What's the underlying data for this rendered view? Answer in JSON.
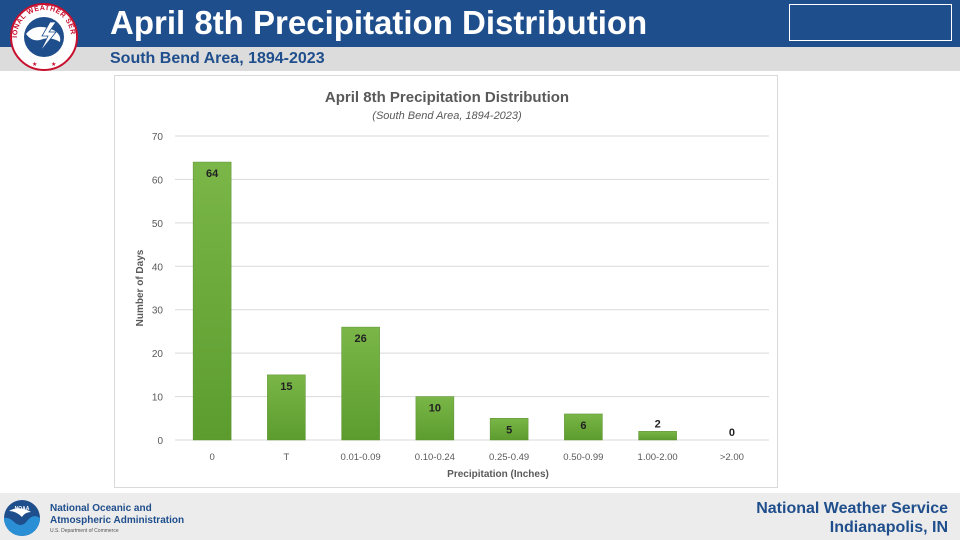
{
  "header": {
    "title": "April 8th Precipitation Distribution",
    "subtitle": "South Bend Area, 1894-2023",
    "logo_icon": "nws-logo-icon",
    "logo_text": "NATIONAL WEATHER SERVICE"
  },
  "footer": {
    "noaa_line1": "National Oceanic and",
    "noaa_line2": "Atmospheric Administration",
    "noaa_line3": "U.S. Department of Commerce",
    "noaa_logo_icon": "noaa-logo-icon",
    "noaa_logo_text": "NOAA",
    "nws_name": "National Weather Service",
    "nws_location": "Indianapolis, IN"
  },
  "colors": {
    "header_bg": "#1f4e8c",
    "subbar_bg": "#dcdcdc",
    "bar_fill_top": "#7ab648",
    "bar_fill_bottom": "#5c9c2e"
  },
  "chart_data": {
    "type": "bar",
    "title": "April 8th Precipitation Distribution",
    "subtitle": "(South Bend Area, 1894-2023)",
    "xlabel": "Precipitation (Inches)",
    "ylabel": "Number of Days",
    "categories": [
      "0",
      "T",
      "0.01-0.09",
      "0.10-0.24",
      "0.25-0.49",
      "0.50-0.99",
      "1.00-2.00",
      ">2.00"
    ],
    "values": [
      64,
      15,
      26,
      10,
      5,
      6,
      2,
      0
    ],
    "ylim": [
      0,
      70
    ],
    "yticks": [
      0,
      10,
      20,
      30,
      40,
      50,
      60,
      70
    ],
    "grid": true,
    "data_labels": true,
    "legend": "none"
  }
}
